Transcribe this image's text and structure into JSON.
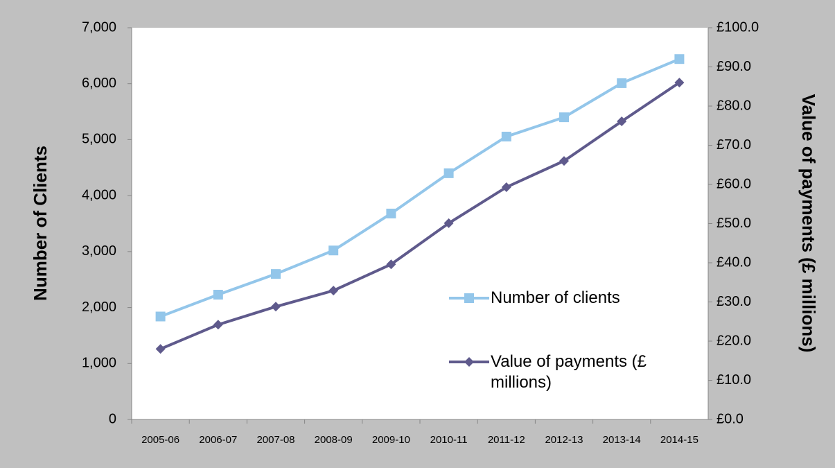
{
  "chart_data": {
    "type": "line",
    "categories": [
      "2005-06",
      "2006-07",
      "2007-08",
      "2008-09",
      "2009-10",
      "2010-11",
      "2011-12",
      "2012-13",
      "2013-14",
      "2014-15"
    ],
    "series": [
      {
        "name": "Number of clients",
        "color": "#93c6ea",
        "marker": "square",
        "values": [
          1840,
          2230,
          2600,
          3020,
          3680,
          4400,
          5055,
          5400,
          6010,
          6440
        ]
      },
      {
        "name": "Value of payments (£ millions)",
        "color": "#5f5a8c",
        "marker": "diamond",
        "axis": "y2",
        "values": [
          18.0,
          24.2,
          28.8,
          32.9,
          39.6,
          50.1,
          59.3,
          66.0,
          76.1,
          86.0
        ]
      }
    ],
    "ylabel": "Number of Clients",
    "y2label": "Value of payments (£ millions)",
    "ylim": [
      0,
      7000
    ],
    "yticks": [
      0,
      {
        "value": 1000,
        "label": "1,000"
      },
      {
        "value": 2000,
        "label": "2,000"
      },
      {
        "value": 3000,
        "label": "3,000"
      },
      {
        "value": 4000,
        "label": "4,000"
      },
      {
        "value": 5000,
        "label": "5,000"
      },
      {
        "value": 6000,
        "label": "6,000"
      },
      {
        "value": 7000,
        "label": "7,000"
      }
    ],
    "y2lim": [
      0,
      100
    ],
    "y2ticks": [
      {
        "value": 0,
        "label": "£0.0"
      },
      {
        "value": 10,
        "label": "£10.0"
      },
      {
        "value": 20,
        "label": "£20.0"
      },
      {
        "value": 30,
        "label": "£30.0"
      },
      {
        "value": 40,
        "label": "£40.0"
      },
      {
        "value": 50,
        "label": "£50.0"
      },
      {
        "value": 60,
        "label": "£60.0"
      },
      {
        "value": 70,
        "label": "£70.0"
      },
      {
        "value": 80,
        "label": "£80.0"
      },
      {
        "value": 90,
        "label": "£90.0"
      },
      {
        "value": 100,
        "label": "£100.0"
      }
    ]
  }
}
